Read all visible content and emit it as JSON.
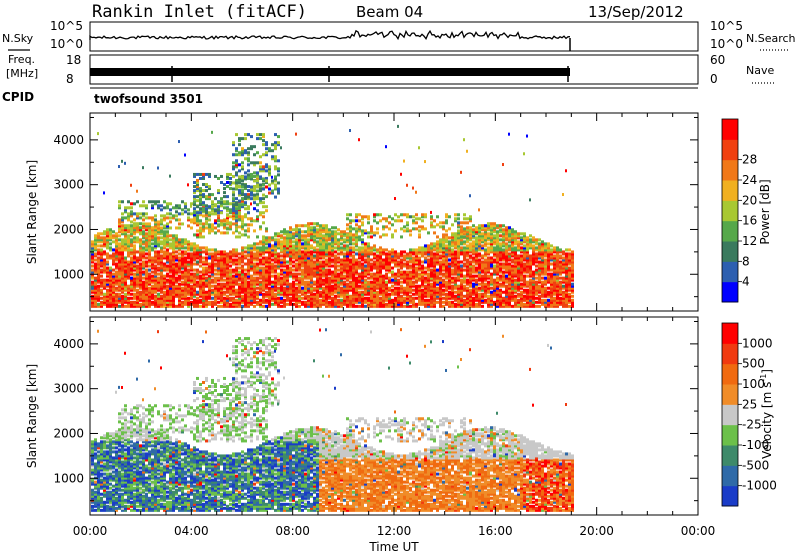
{
  "header": {
    "title": "Rankin Inlet (fitACF)",
    "beam": "Beam 04",
    "date": "13/Sep/2012"
  },
  "params": {
    "nsky_label": "N.Sky",
    "nsearch_label": "N.Search",
    "noise_ticks_left": [
      "10^5",
      "10^0"
    ],
    "noise_ticks_right": [
      "10^5",
      "10^0"
    ],
    "freq_label_1": "Freq.",
    "freq_label_2": "[MHz]",
    "freq_ticks": [
      "18",
      "8"
    ],
    "nave_label": "Nave",
    "nave_ticks": [
      "60",
      "0"
    ],
    "cpid_label": "CPID",
    "cpid_value": "twofsound 3501"
  },
  "chart_data": [
    {
      "type": "heatmap",
      "name": "power",
      "xlabel": "Time UT",
      "ylabel": "Slant Range [km]",
      "x_ticks": [
        "00:00",
        "04:00",
        "08:00",
        "12:00",
        "16:00",
        "20:00",
        "00:00"
      ],
      "xlim_hours": [
        0,
        24
      ],
      "y_ticks": [
        "1000",
        "2000",
        "3000",
        "4000"
      ],
      "ylim_km": [
        180,
        4600
      ],
      "data_end_hour": 19,
      "colorbar": {
        "label": "Power [dB]",
        "ticks": [
          "4",
          "8",
          "12",
          "16",
          "20",
          "24",
          "28"
        ],
        "colors": [
          "#0000ff",
          "#2d5fb0",
          "#3a7a5e",
          "#56a84a",
          "#a8c832",
          "#f0b020",
          "#f07818",
          "#f04010",
          "#ff0000"
        ]
      }
    },
    {
      "type": "heatmap",
      "name": "velocity",
      "xlabel": "Time UT",
      "ylabel": "Slant Range [km]",
      "x_ticks": [
        "00:00",
        "04:00",
        "08:00",
        "12:00",
        "16:00",
        "20:00",
        "00:00"
      ],
      "xlim_hours": [
        0,
        24
      ],
      "y_ticks": [
        "1000",
        "2000",
        "3000",
        "4000"
      ],
      "ylim_km": [
        180,
        4600
      ],
      "data_end_hour": 19,
      "colorbar": {
        "label": "Velocity [m s",
        "label_unit_sup": "-1",
        "label_end": "]",
        "ticks": [
          "1000",
          "500",
          "100",
          "25",
          "-25",
          "-100",
          "-500",
          "-1000"
        ],
        "colors": [
          "#1a3cc8",
          "#2f6aa8",
          "#3e8a6a",
          "#6cc04a",
          "#c8c8c8",
          "#f08c28",
          "#f06a10",
          "#f03a10",
          "#ff0000"
        ]
      }
    }
  ]
}
